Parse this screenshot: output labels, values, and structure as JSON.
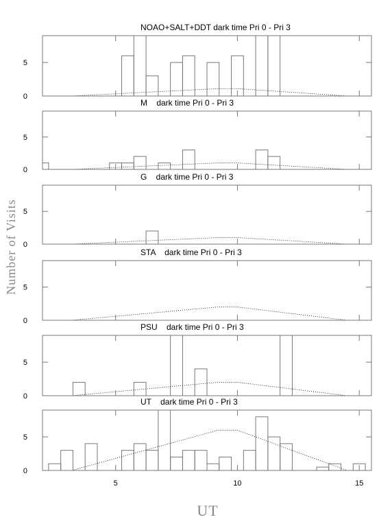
{
  "chart_data": [
    {
      "type": "histogram",
      "title": "NOAO+SALT+DDT dark time Pri 0 - Pri 3",
      "bins": [
        1.75,
        2.25,
        2.75,
        3.25,
        3.75,
        4.25,
        4.75,
        5.25,
        5.75,
        6.25,
        6.75,
        7.25,
        7.75,
        8.25,
        8.75,
        9.25,
        9.75,
        10.25,
        10.75,
        11.25,
        11.75,
        12.25,
        12.75,
        13.25,
        13.75,
        14.25,
        14.75,
        15.25
      ],
      "values": [
        0,
        0,
        0,
        0,
        0,
        0,
        0,
        6,
        9,
        3,
        0,
        5,
        6,
        0,
        5,
        0,
        6,
        0,
        9,
        9,
        0,
        0,
        0,
        0,
        0,
        0,
        0
      ],
      "color": "#777777",
      "curve": {
        "x": [
          3.2,
          9.2,
          10,
          14.5
        ],
        "values": [
          0,
          1.1,
          1.1,
          0
        ],
        "color": "#000000"
      },
      "xlim": [
        2,
        15.5
      ],
      "ylim": [
        0,
        9
      ],
      "xticks": [
        5,
        10,
        15
      ],
      "yticks": [
        0,
        5
      ]
    },
    {
      "type": "histogram",
      "title": "M    dark time Pri 0 - Pri 3",
      "bins": [
        1.75,
        2.25,
        2.75,
        3.25,
        3.75,
        4.25,
        4.75,
        5.25,
        5.75,
        6.25,
        6.75,
        7.25,
        7.75,
        8.25,
        8.75,
        9.25,
        9.75,
        10.25,
        10.75,
        11.25,
        11.75,
        12.25,
        12.75,
        13.25,
        13.75,
        14.25,
        14.75,
        15.25
      ],
      "values": [
        1,
        0,
        0,
        0,
        0,
        0,
        1,
        1,
        2,
        0,
        1,
        0,
        3,
        0,
        0,
        0,
        0,
        0,
        3,
        2,
        0,
        0,
        0,
        0,
        0,
        0,
        0
      ],
      "color": "#777777",
      "curve": {
        "x": [
          3.2,
          9.2,
          10,
          14.5
        ],
        "values": [
          0,
          1,
          1,
          0
        ],
        "color": "#000000"
      },
      "xlim": [
        2,
        15.5
      ],
      "ylim": [
        0,
        9
      ],
      "xticks": [
        5,
        10,
        15
      ],
      "yticks": [
        0,
        5
      ]
    },
    {
      "type": "histogram",
      "title": "G    dark time Pri 0 - Pri 3",
      "bins": [
        1.75,
        2.25,
        2.75,
        3.25,
        3.75,
        4.25,
        4.75,
        5.25,
        5.75,
        6.25,
        6.75,
        7.25,
        7.75,
        8.25,
        8.75,
        9.25,
        9.75,
        10.25,
        10.75,
        11.25,
        11.75,
        12.25,
        12.75,
        13.25,
        13.75,
        14.25,
        14.75,
        15.25
      ],
      "values": [
        0,
        0,
        0,
        0,
        0,
        0,
        0,
        0,
        0,
        2,
        0,
        0,
        0,
        0,
        0,
        0,
        0,
        0,
        0,
        0,
        0,
        0,
        0,
        0,
        0,
        0,
        0
      ],
      "color": "#777777",
      "curve": {
        "x": [
          3.2,
          9.2,
          10,
          14.5
        ],
        "values": [
          0,
          1,
          1,
          0
        ],
        "color": "#000000"
      },
      "xlim": [
        2,
        15.5
      ],
      "ylim": [
        0,
        9
      ],
      "xticks": [
        5,
        10,
        15
      ],
      "yticks": [
        0,
        5
      ]
    },
    {
      "type": "histogram",
      "title": "STA    dark time Pri 0 - Pri 3",
      "bins": [
        1.75,
        2.25,
        2.75,
        3.25,
        3.75,
        4.25,
        4.75,
        5.25,
        5.75,
        6.25,
        6.75,
        7.25,
        7.75,
        8.25,
        8.75,
        9.25,
        9.75,
        10.25,
        10.75,
        11.25,
        11.75,
        12.25,
        12.75,
        13.25,
        13.75,
        14.25,
        14.75,
        15.25
      ],
      "values": [
        0,
        0,
        0,
        0,
        0,
        0,
        0,
        0,
        0,
        0,
        0,
        0,
        0,
        0,
        0,
        0,
        0,
        0,
        0,
        0,
        0,
        0,
        0,
        0,
        0,
        0,
        0
      ],
      "color": "#777777",
      "curve": {
        "x": [
          3.2,
          9.2,
          10,
          14.5
        ],
        "values": [
          0,
          2,
          2,
          0
        ],
        "color": "#000000"
      },
      "xlim": [
        2,
        15.5
      ],
      "ylim": [
        0,
        9
      ],
      "xticks": [
        5,
        10,
        15
      ],
      "yticks": [
        0,
        5
      ]
    },
    {
      "type": "histogram",
      "title": "PSU    dark time Pri 0 - Pri 3",
      "bins": [
        1.75,
        2.25,
        2.75,
        3.25,
        3.75,
        4.25,
        4.75,
        5.25,
        5.75,
        6.25,
        6.75,
        7.25,
        7.75,
        8.25,
        8.75,
        9.25,
        9.75,
        10.25,
        10.75,
        11.25,
        11.75,
        12.25,
        12.75,
        13.25,
        13.75,
        14.25,
        14.75,
        15.25
      ],
      "values": [
        0,
        0,
        0,
        2,
        0,
        0,
        0,
        0,
        2,
        0,
        0,
        9,
        0,
        4,
        0,
        0,
        0,
        0,
        0,
        0,
        9,
        0,
        0,
        0,
        0,
        0,
        0
      ],
      "color": "#777777",
      "curve": {
        "x": [
          3.2,
          9.2,
          10,
          14.5
        ],
        "values": [
          0,
          2,
          2,
          0
        ],
        "color": "#000000"
      },
      "xlim": [
        2,
        15.5
      ],
      "ylim": [
        0,
        9
      ],
      "xticks": [
        5,
        10,
        15
      ],
      "yticks": [
        0,
        5
      ]
    },
    {
      "type": "histogram",
      "title": "UT    dark time Pri 0 - Pri 3",
      "bins": [
        1.75,
        2.25,
        2.75,
        3.25,
        3.75,
        4.25,
        4.75,
        5.25,
        5.75,
        6.25,
        6.75,
        7.25,
        7.75,
        8.25,
        8.75,
        9.25,
        9.75,
        10.25,
        10.75,
        11.25,
        11.75,
        12.25,
        12.75,
        13.25,
        13.75,
        14.25,
        14.75,
        15.25
      ],
      "values": [
        0,
        1,
        3,
        0,
        4,
        0,
        0,
        3,
        4,
        3,
        9,
        2,
        3,
        3,
        1,
        2,
        0,
        3,
        8,
        5,
        4,
        0,
        0,
        0.5,
        1,
        0,
        1
      ],
      "color": "#777777",
      "curve": {
        "x": [
          3.2,
          9.2,
          10,
          14.5
        ],
        "values": [
          0,
          6,
          6,
          0
        ],
        "color": "#000000"
      },
      "xlim": [
        2,
        15.5
      ],
      "ylim": [
        0,
        9
      ],
      "xticks": [
        5,
        10,
        15
      ],
      "yticks": [
        0,
        5
      ]
    }
  ],
  "xlabel": "UT",
  "ylabel": "Number of Visits"
}
